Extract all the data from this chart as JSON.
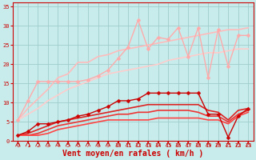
{
  "xlabel": "Vent moyen/en rafales ( km/h )",
  "xlim": [
    -0.5,
    23.5
  ],
  "ylim": [
    0,
    36
  ],
  "yticks": [
    0,
    5,
    10,
    15,
    20,
    25,
    30,
    35
  ],
  "xticks": [
    0,
    1,
    2,
    3,
    4,
    5,
    6,
    7,
    8,
    9,
    10,
    11,
    12,
    13,
    14,
    15,
    16,
    17,
    18,
    19,
    20,
    21,
    22,
    23
  ],
  "bg_color": "#c8ecec",
  "grid_color": "#a0cccc",
  "series": [
    {
      "x": [
        0,
        1,
        2,
        3,
        4,
        5,
        6,
        7,
        8,
        9,
        10,
        11,
        12,
        13,
        14,
        15,
        16,
        17,
        18,
        19,
        20,
        21,
        22,
        23
      ],
      "y": [
        5.5,
        10.5,
        15.5,
        15.5,
        15.5,
        15.5,
        15.5,
        16.0,
        17.0,
        18.5,
        21.5,
        24.5,
        31.5,
        24.0,
        27.0,
        26.5,
        29.5,
        22.0,
        29.5,
        16.5,
        29.0,
        19.5,
        27.5,
        27.5
      ],
      "color": "#ffaaaa",
      "lw": 1.0,
      "marker": "D",
      "ms": 2.5,
      "zorder": 4
    },
    {
      "x": [
        0,
        1,
        2,
        3,
        4,
        5,
        6,
        7,
        8,
        9,
        10,
        11,
        12,
        13,
        14,
        15,
        16,
        17,
        18,
        19,
        20,
        21,
        22,
        23
      ],
      "y": [
        5.5,
        8.5,
        11.0,
        13.5,
        16.5,
        17.5,
        20.5,
        20.5,
        22.0,
        22.5,
        23.5,
        24.0,
        24.5,
        25.0,
        25.5,
        26.0,
        26.5,
        27.0,
        27.5,
        28.0,
        28.5,
        29.0,
        29.0,
        29.5
      ],
      "color": "#ffbbbb",
      "lw": 1.2,
      "marker": null,
      "ms": 0,
      "zorder": 2
    },
    {
      "x": [
        0,
        1,
        2,
        3,
        4,
        5,
        6,
        7,
        8,
        9,
        10,
        11,
        12,
        13,
        14,
        15,
        16,
        17,
        18,
        19,
        20,
        21,
        22,
        23
      ],
      "y": [
        5.5,
        7.0,
        8.5,
        10.5,
        12.0,
        13.5,
        14.5,
        15.5,
        16.5,
        17.5,
        18.0,
        18.5,
        19.0,
        19.5,
        20.0,
        21.0,
        21.5,
        22.0,
        22.5,
        23.0,
        23.0,
        23.5,
        24.0,
        24.0
      ],
      "color": "#ffcccc",
      "lw": 1.2,
      "marker": null,
      "ms": 0,
      "zorder": 2
    },
    {
      "x": [
        0,
        1,
        2,
        3,
        4,
        5,
        6,
        7,
        8,
        9,
        10,
        11,
        12,
        13,
        14,
        15,
        16,
        17,
        18,
        19,
        20,
        21,
        22,
        23
      ],
      "y": [
        1.5,
        2.5,
        4.5,
        4.5,
        5.0,
        5.5,
        6.5,
        7.0,
        8.0,
        9.0,
        10.5,
        10.5,
        11.0,
        12.5,
        12.5,
        12.5,
        12.5,
        12.5,
        12.5,
        7.0,
        7.0,
        1.0,
        6.5,
        8.5
      ],
      "color": "#cc0000",
      "lw": 1.0,
      "marker": "D",
      "ms": 2.5,
      "zorder": 4
    },
    {
      "x": [
        0,
        1,
        2,
        3,
        4,
        5,
        6,
        7,
        8,
        9,
        10,
        11,
        12,
        13,
        14,
        15,
        16,
        17,
        18,
        19,
        20,
        21,
        22,
        23
      ],
      "y": [
        1.5,
        2.0,
        3.0,
        4.0,
        5.0,
        5.5,
        6.0,
        6.5,
        7.0,
        7.5,
        8.0,
        8.5,
        9.0,
        9.5,
        9.5,
        9.5,
        9.5,
        9.5,
        9.5,
        8.0,
        7.5,
        5.5,
        8.0,
        8.5
      ],
      "color": "#dd2222",
      "lw": 1.2,
      "marker": null,
      "ms": 0,
      "zorder": 3
    },
    {
      "x": [
        0,
        1,
        2,
        3,
        4,
        5,
        6,
        7,
        8,
        9,
        10,
        11,
        12,
        13,
        14,
        15,
        16,
        17,
        18,
        19,
        20,
        21,
        22,
        23
      ],
      "y": [
        1.5,
        1.5,
        2.0,
        3.0,
        4.0,
        4.5,
        5.0,
        5.5,
        6.0,
        6.5,
        7.0,
        7.0,
        7.5,
        7.5,
        8.0,
        8.0,
        8.0,
        8.0,
        7.5,
        6.5,
        6.5,
        5.0,
        7.0,
        8.0
      ],
      "color": "#ee3333",
      "lw": 1.2,
      "marker": null,
      "ms": 0,
      "zorder": 3
    },
    {
      "x": [
        0,
        1,
        2,
        3,
        4,
        5,
        6,
        7,
        8,
        9,
        10,
        11,
        12,
        13,
        14,
        15,
        16,
        17,
        18,
        19,
        20,
        21,
        22,
        23
      ],
      "y": [
        1.5,
        1.5,
        1.5,
        2.0,
        3.0,
        3.5,
        4.0,
        4.5,
        5.0,
        5.5,
        5.5,
        5.5,
        5.5,
        5.5,
        6.0,
        6.0,
        6.0,
        6.0,
        6.0,
        5.5,
        5.5,
        4.5,
        6.5,
        7.5
      ],
      "color": "#ff4444",
      "lw": 1.2,
      "marker": null,
      "ms": 0,
      "zorder": 3
    }
  ],
  "tick_color": "#cc0000",
  "label_color": "#cc0000",
  "xlabel_fontsize": 7,
  "tick_fontsize": 5,
  "ylabel_ticks": [
    "0",
    "5",
    "10",
    "15",
    "20",
    "25",
    "30",
    "35"
  ]
}
